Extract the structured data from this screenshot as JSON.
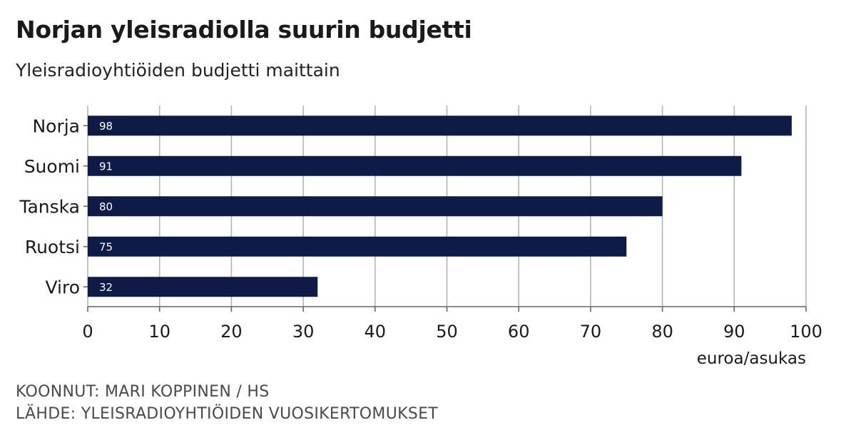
{
  "title": "Norjan yleisradiolla suurin budjetti",
  "subtitle": "Yleisradioyhtiöiden budjetti maittain",
  "footer": {
    "credit": "KOONNUT: MARI KOPPINEN / HS",
    "source": "LÄHDE: YLEISRADIOYHTIÖIDEN VUOSIKERTOMUKSET"
  },
  "colors": {
    "bar": "#0f1b47",
    "grid": "#b5b5b5",
    "axis": "#666666",
    "bar_label": "#ffffff"
  },
  "chart_data": {
    "type": "bar",
    "orientation": "horizontal",
    "categories": [
      "Norja",
      "Suomi",
      "Tanska",
      "Ruotsi",
      "Viro"
    ],
    "values": [
      98,
      91,
      80,
      75,
      32
    ],
    "data_labels": [
      "98",
      "91",
      "80",
      "75",
      "32"
    ],
    "xlabel": "euroa/asukas",
    "ylabel": "",
    "xlim": [
      0,
      100
    ],
    "xticks": [
      0,
      10,
      20,
      30,
      40,
      50,
      60,
      70,
      80,
      90,
      100
    ],
    "grid": true,
    "legend": "none"
  }
}
